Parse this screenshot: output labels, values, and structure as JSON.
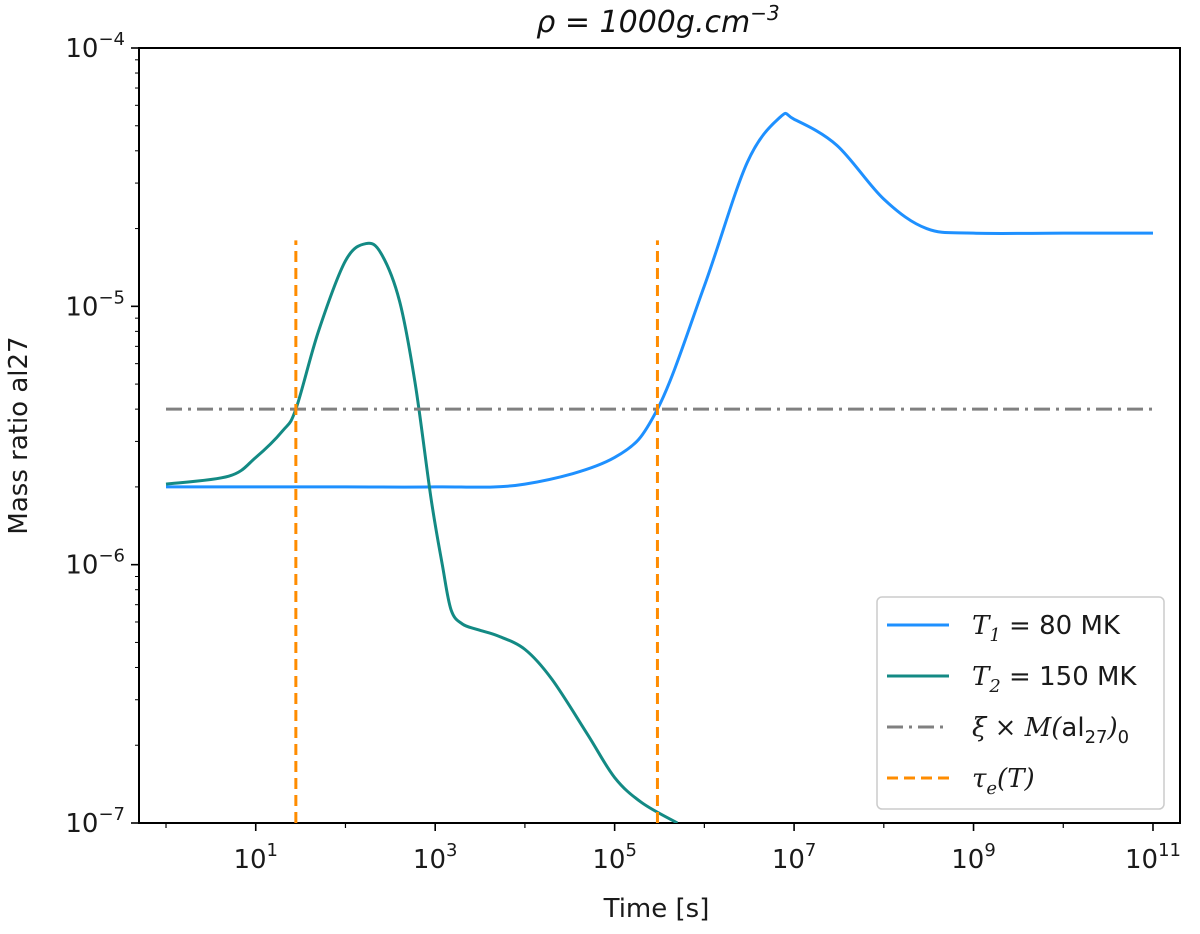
{
  "chart_data": {
    "type": "line",
    "title": "ρ = 1000g.cm⁻³",
    "xlabel": "Time [s]",
    "ylabel": "Mass ratio al27",
    "xscale": "log",
    "yscale": "log",
    "xlim": [
      0.5,
      200000000000.0
    ],
    "ylim": [
      1e-07,
      0.0001
    ],
    "xticks": [
      {
        "value": 10,
        "base": "10",
        "exp": "1"
      },
      {
        "value": 1000,
        "base": "10",
        "exp": "3"
      },
      {
        "value": 100000,
        "base": "10",
        "exp": "5"
      },
      {
        "value": 10000000,
        "base": "10",
        "exp": "7"
      },
      {
        "value": 1000000000,
        "base": "10",
        "exp": "9"
      },
      {
        "value": 100000000000,
        "base": "10",
        "exp": "11"
      }
    ],
    "yticks": [
      {
        "value": 0.0001,
        "base": "10",
        "exp": "−4"
      },
      {
        "value": 1e-05,
        "base": "10",
        "exp": "−5"
      },
      {
        "value": 1e-06,
        "base": "10",
        "exp": "−6"
      },
      {
        "value": 1e-07,
        "base": "10",
        "exp": "−7"
      }
    ],
    "legend_position": "lower-right",
    "series": [
      {
        "name": "T1 = 80 MK",
        "legend": {
          "sym": "T",
          "sub": "1",
          "rest": " = 80 MK"
        },
        "color": "#1e90ff",
        "style": "solid",
        "x": [
          1,
          10,
          100,
          1000,
          10000,
          100000,
          300000,
          1000000,
          3000000,
          7000000,
          10000000,
          30000000,
          100000000,
          300000000,
          1000000000,
          10000000000,
          100000000000
        ],
        "y": [
          2e-06,
          2e-06,
          2e-06,
          2e-06,
          2.05e-06,
          2.6e-06,
          4e-06,
          1.2e-05,
          3.6e-05,
          5.4e-05,
          5.3e-05,
          4.2e-05,
          2.6e-05,
          2e-05,
          1.92e-05,
          1.92e-05,
          1.92e-05
        ]
      },
      {
        "name": "T2 = 150 MK",
        "legend": {
          "sym": "T",
          "sub": "2",
          "rest": " = 150 MK"
        },
        "color": "#138a84",
        "style": "solid",
        "x": [
          1,
          5,
          10,
          20,
          28,
          50,
          100,
          170,
          250,
          400,
          600,
          900,
          1200,
          1500,
          2000,
          3000,
          5000,
          10000,
          20000,
          50000,
          100000,
          200000,
          500000
        ],
        "y": [
          2.05e-06,
          2.2e-06,
          2.6e-06,
          3.3e-06,
          4e-06,
          8e-06,
          1.5e-05,
          1.75e-05,
          1.6e-05,
          1.05e-05,
          5e-06,
          1.8e-06,
          1e-06,
          6.7e-07,
          5.9e-07,
          5.6e-07,
          5.3e-07,
          4.7e-07,
          3.6e-07,
          2.2e-07,
          1.5e-07,
          1.2e-07,
          1e-07
        ]
      },
      {
        "name": "ξ × M(al27)0",
        "legend": {
          "sym": "ξ × M(",
          "mid": "al",
          "sub": "27",
          "rest": ")",
          "sub2": "0"
        },
        "color": "#808080",
        "style": "dashdot",
        "x": [
          1,
          100000000000
        ],
        "y": [
          4e-06,
          4e-06
        ]
      },
      {
        "name": "τe(T)",
        "legend": {
          "sym": "τ",
          "sub": "e",
          "rest": "(T)"
        },
        "color": "#ff8c00",
        "style": "dashed",
        "segments": [
          {
            "x": [
              28,
              28
            ],
            "y": [
              1e-07,
              1.8e-05
            ]
          },
          {
            "x": [
              300000,
              300000
            ],
            "y": [
              1e-07,
              1.8e-05
            ]
          }
        ]
      }
    ]
  }
}
